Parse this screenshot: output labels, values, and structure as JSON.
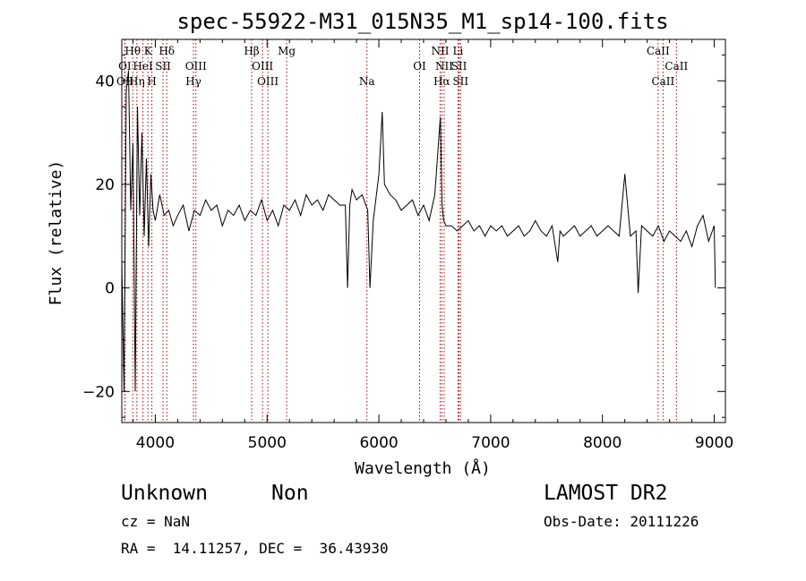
{
  "chart_data": {
    "type": "line",
    "title": "spec-55922-M31_015N35_M1_sp14-100.fits",
    "xlabel": "Wavelength (Å)",
    "ylabel": "Flux (relative)",
    "xlim": [
      3700,
      9100
    ],
    "ylim": [
      -26,
      48
    ],
    "xticks": [
      4000,
      5000,
      6000,
      7000,
      8000,
      9000
    ],
    "yticks": [
      -20,
      0,
      20,
      40
    ],
    "grid": false,
    "legend": "none",
    "line_color": "#000000",
    "marker_color": "#aa0000",
    "series": [
      {
        "x": [
          3700,
          3720,
          3740,
          3760,
          3780,
          3800,
          3820,
          3840,
          3860,
          3880,
          3900,
          3920,
          3940,
          3960,
          3980,
          4000,
          4040,
          4080,
          4120,
          4160,
          4200,
          4250,
          4300,
          4350,
          4400,
          4450,
          4500,
          4550,
          4600,
          4650,
          4700,
          4750,
          4800,
          4850,
          4900,
          4950,
          5000,
          5050,
          5100,
          5150,
          5200,
          5250,
          5300,
          5350,
          5400,
          5450,
          5500,
          5550,
          5600,
          5650,
          5700,
          5720,
          5740,
          5760,
          5800,
          5850,
          5900,
          5920,
          5950,
          6000,
          6030,
          6050,
          6100,
          6150,
          6200,
          6250,
          6300,
          6350,
          6400,
          6450,
          6500,
          6550,
          6565,
          6580,
          6600,
          6650,
          6700,
          6750,
          6800,
          6850,
          6900,
          6950,
          7000,
          7050,
          7100,
          7150,
          7200,
          7250,
          7300,
          7350,
          7400,
          7450,
          7500,
          7550,
          7600,
          7620,
          7650,
          7700,
          7750,
          7800,
          7850,
          7900,
          7950,
          8000,
          8050,
          8100,
          8150,
          8200,
          8250,
          8300,
          8320,
          8350,
          8400,
          8450,
          8500,
          8550,
          8600,
          8650,
          8700,
          8750,
          8800,
          8850,
          8900,
          8950,
          9000,
          9010
        ],
        "values": [
          5,
          -20,
          38,
          42,
          15,
          28,
          -20,
          35,
          14,
          30,
          10,
          25,
          8,
          22,
          15,
          13,
          18,
          14,
          15,
          12,
          14,
          16,
          11,
          15,
          14,
          17,
          15,
          16,
          12,
          15,
          14,
          16,
          13,
          15,
          14,
          17,
          13,
          15,
          12,
          16,
          15,
          17,
          14,
          18,
          16,
          17,
          15,
          18,
          17,
          16,
          16,
          0,
          16,
          19,
          17,
          18,
          15,
          0,
          13,
          22,
          34,
          20,
          18,
          17,
          15,
          16,
          17,
          14,
          16,
          13,
          18,
          33,
          16,
          13,
          12,
          12,
          11,
          12,
          13,
          11,
          12,
          10,
          12,
          11,
          12,
          10,
          11,
          12,
          10,
          11,
          13,
          11,
          10,
          12,
          5,
          11,
          10,
          11,
          12,
          10,
          11,
          12,
          10,
          11,
          12,
          11,
          10,
          22,
          10,
          11,
          -1,
          12,
          11,
          10,
          12,
          9,
          11,
          10,
          9,
          11,
          8,
          12,
          14,
          9,
          12,
          0
        ]
      }
    ],
    "emission_lines": [
      {
        "label": "Hθ",
        "x": 3798,
        "row": 0
      },
      {
        "label": "K",
        "x": 3934,
        "row": 0
      },
      {
        "label": "Hδ",
        "x": 4102,
        "row": 0
      },
      {
        "label": "OI",
        "x": 3727,
        "row": 1
      },
      {
        "label": "HeI",
        "x": 3889,
        "row": 1
      },
      {
        "label": "SII",
        "x": 4069,
        "row": 1
      },
      {
        "label": "OIII",
        "x": 4363,
        "row": 1
      },
      {
        "label": "OII",
        "x": 3729,
        "row": 2
      },
      {
        "label": "Hη",
        "x": 3835,
        "row": 2
      },
      {
        "label": "H",
        "x": 3969,
        "row": 2
      },
      {
        "label": "Hγ",
        "x": 4341,
        "row": 2
      },
      {
        "label": "Hβ",
        "x": 4862,
        "row": 0
      },
      {
        "label": "Mg",
        "x": 5175,
        "row": 0
      },
      {
        "label": "OIII",
        "x": 4959,
        "row": 1
      },
      {
        "label": "OIII",
        "x": 5007,
        "row": 2
      },
      {
        "label": "Na",
        "x": 5893,
        "row": 2
      },
      {
        "label": "NII",
        "x": 6548,
        "row": 0
      },
      {
        "label": "Li",
        "x": 6708,
        "row": 0
      },
      {
        "label": "OI",
        "x": 6364,
        "row": 1
      },
      {
        "label": "NII",
        "x": 6584,
        "row": 1
      },
      {
        "label": "SII",
        "x": 6717,
        "row": 1
      },
      {
        "label": "Hα",
        "x": 6563,
        "row": 2
      },
      {
        "label": "SII",
        "x": 6731,
        "row": 2
      },
      {
        "label": "CaII",
        "x": 8498,
        "row": 0
      },
      {
        "label": "CaII",
        "x": 8662,
        "row": 1
      },
      {
        "label": "CaII",
        "x": 8542,
        "row": 2
      }
    ]
  },
  "info": {
    "class": "Unknown",
    "subclass": "Non",
    "survey": "LAMOST DR2",
    "cz": "cz = NaN",
    "obsdate": "Obs-Date: 20111226",
    "radec": "RA =  14.11257, DEC =  36.43930"
  }
}
